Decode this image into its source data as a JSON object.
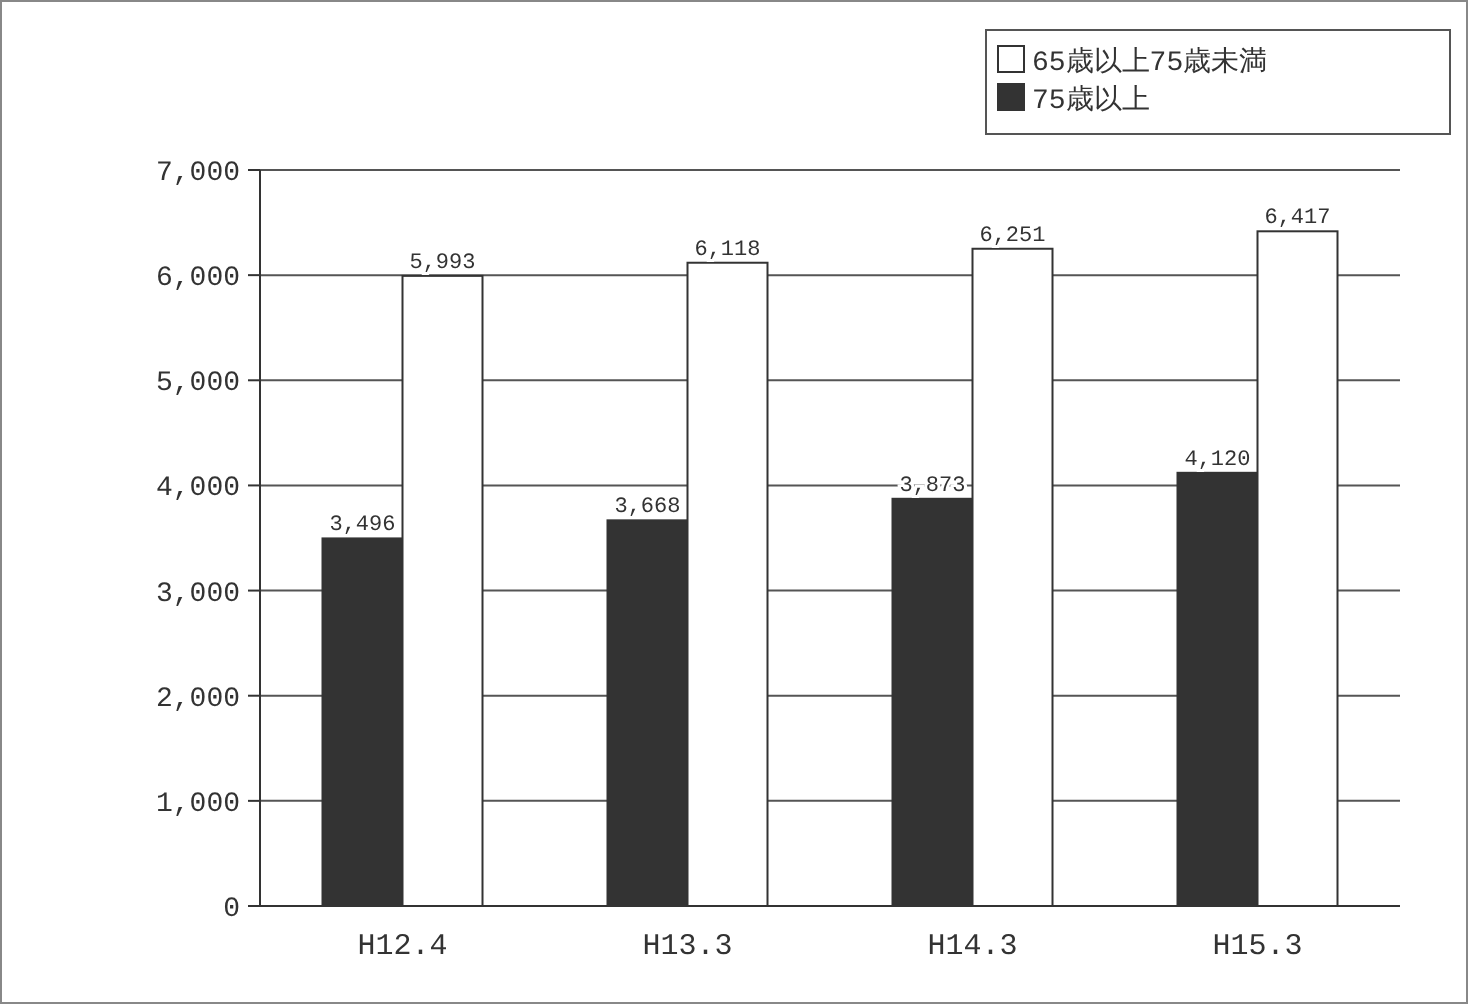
{
  "chart_data": {
    "type": "bar",
    "categories": [
      "H12.4",
      "H13.3",
      "H14.3",
      "H15.3"
    ],
    "series": [
      {
        "name": "75歳以上",
        "color": "#333333",
        "values": [
          3496,
          3668,
          3873,
          4120
        ],
        "value_labels": [
          "3,496",
          "3,668",
          "3,873",
          "4,120"
        ]
      },
      {
        "name": "65歳以上75歳未満",
        "color": "#ffffff",
        "values": [
          5993,
          6118,
          6251,
          6417
        ],
        "value_labels": [
          "5,993",
          "6,118",
          "6,251",
          "6,417"
        ]
      }
    ],
    "ylim": [
      0,
      7000
    ],
    "yticks": [
      {
        "value": 0,
        "label": "0"
      },
      {
        "value": 1000,
        "label": "1,000"
      },
      {
        "value": 2000,
        "label": "2,000"
      },
      {
        "value": 3000,
        "label": "3,000"
      },
      {
        "value": 4000,
        "label": "4,000"
      },
      {
        "value": 5000,
        "label": "5,000"
      },
      {
        "value": 6000,
        "label": "6,000"
      },
      {
        "value": 7000,
        "label": "7,000"
      }
    ],
    "grid": "y",
    "legend": "top right"
  }
}
